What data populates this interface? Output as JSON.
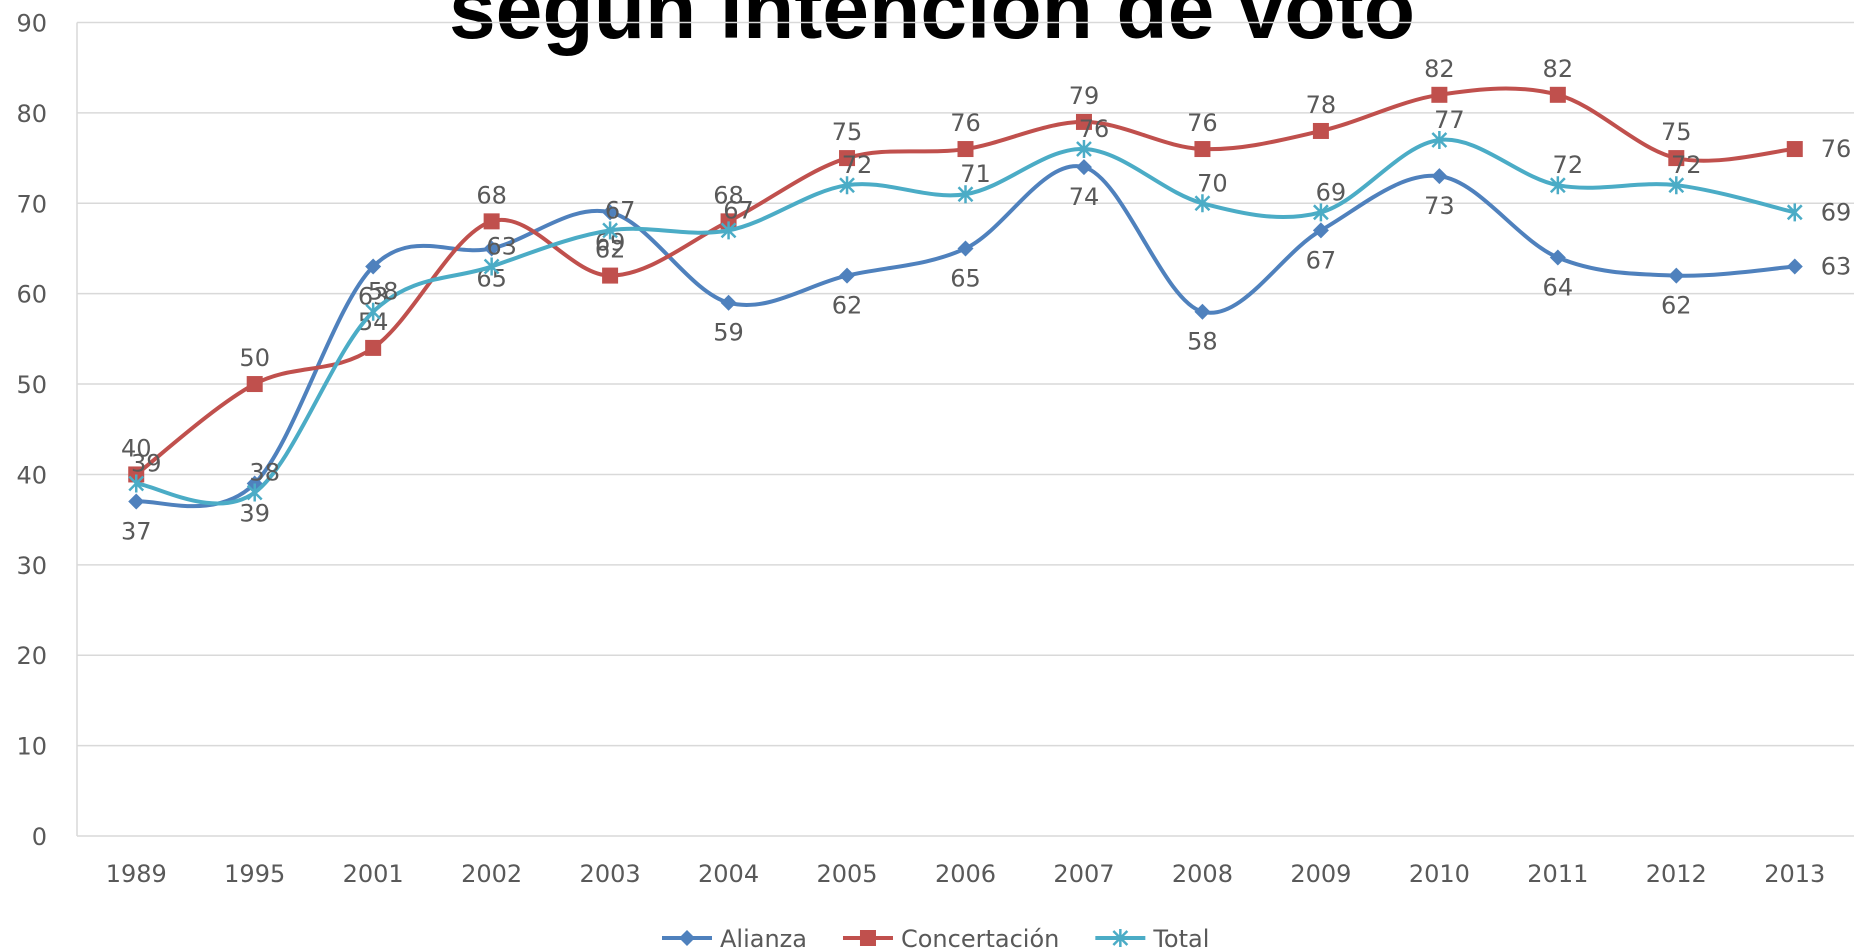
{
  "chart_data": {
    "type": "line",
    "title": "según intención de voto",
    "categories": [
      "1989",
      "1995",
      "2001",
      "2002",
      "2003",
      "2004",
      "2005",
      "2006",
      "2007",
      "2008",
      "2009",
      "2010",
      "2011",
      "2012",
      "2013"
    ],
    "series": [
      {
        "name": "Alianza",
        "color": "#4f81bd",
        "marker": "diamond",
        "values": [
          37,
          39,
          63,
          65,
          69,
          59,
          62,
          65,
          74,
          58,
          67,
          73,
          64,
          62,
          63
        ]
      },
      {
        "name": "Concertación",
        "color": "#c0504d",
        "marker": "square",
        "values": [
          40,
          50,
          54,
          68,
          62,
          68,
          75,
          76,
          79,
          76,
          78,
          82,
          82,
          75,
          76
        ]
      },
      {
        "name": "Total",
        "color": "#4bacc6",
        "marker": "asterisk",
        "values": [
          39,
          38,
          58,
          63,
          67,
          67,
          72,
          71,
          76,
          70,
          69,
          77,
          72,
          72,
          69
        ]
      }
    ],
    "ylim": [
      0,
      90
    ],
    "yticks": [
      0,
      10,
      20,
      30,
      40,
      50,
      60,
      70,
      80,
      90
    ],
    "grid": true,
    "smooth": true,
    "legend": "bottom"
  }
}
